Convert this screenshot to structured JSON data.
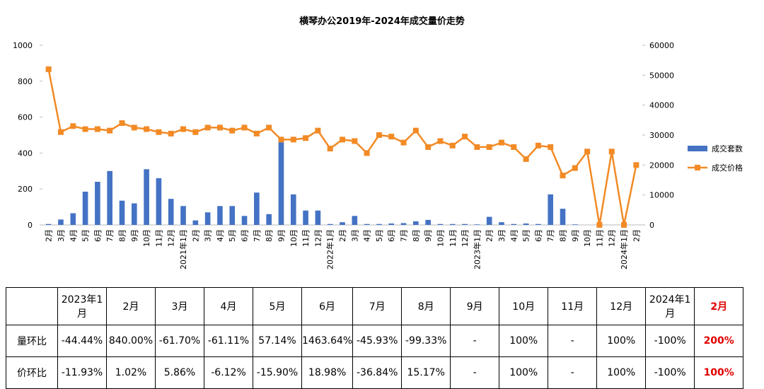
{
  "chart_data": {
    "type": "bar_line",
    "title": "横琴办公2019年-2024年成交量价走势",
    "categories": [
      "2月",
      "3月",
      "4月",
      "5月",
      "6月",
      "7月",
      "8月",
      "9月",
      "10月",
      "11月",
      "12月",
      "2021年1月",
      "2月",
      "3月",
      "4月",
      "5月",
      "6月",
      "7月",
      "8月",
      "9月",
      "10月",
      "11月",
      "12月",
      "2022年1月",
      "2月",
      "3月",
      "4月",
      "5月",
      "6月",
      "7月",
      "8月",
      "9月",
      "10月",
      "11月",
      "12月",
      "2023年1月",
      "2月",
      "3月",
      "4月",
      "5月",
      "6月",
      "7月",
      "8月",
      "9月",
      "10月",
      "11月",
      "12月",
      "2024年1月",
      "2月"
    ],
    "series": [
      {
        "name": "成交套数",
        "type": "bar",
        "color": "#4472c4",
        "axis": "y",
        "values": [
          5,
          30,
          65,
          185,
          240,
          300,
          135,
          120,
          310,
          260,
          145,
          105,
          25,
          70,
          105,
          105,
          50,
          180,
          60,
          460,
          170,
          80,
          80,
          5,
          15,
          50,
          5,
          5,
          8,
          10,
          20,
          28,
          5,
          5,
          5,
          3,
          45,
          15,
          5,
          8,
          5,
          170,
          90,
          3,
          0,
          0,
          0,
          10,
          0
        ]
      },
      {
        "name": "成交价格",
        "type": "line",
        "color": "#f28a26",
        "axis": "y2",
        "values": [
          52000,
          31000,
          33000,
          32000,
          32000,
          31500,
          34000,
          32500,
          32000,
          31000,
          30500,
          32000,
          31000,
          32500,
          32500,
          31500,
          32500,
          30500,
          32500,
          28500,
          28500,
          29000,
          31500,
          25500,
          28500,
          28000,
          24000,
          30000,
          29500,
          27500,
          31500,
          26000,
          28000,
          26500,
          29500,
          26000,
          26000,
          27500,
          26000,
          22000,
          26500,
          26000,
          16500,
          19000,
          24500,
          0,
          24500,
          0,
          20000
        ]
      }
    ],
    "ylim": [
      0,
      1000
    ],
    "yticks": [
      0,
      200,
      400,
      600,
      800,
      1000
    ],
    "y2lim": [
      0,
      60000
    ],
    "y2ticks": [
      0,
      10000,
      20000,
      30000,
      40000,
      50000,
      60000
    ],
    "legend": "right"
  },
  "table": {
    "header": [
      "2023年1月",
      "2月",
      "3月",
      "4月",
      "5月",
      "6月",
      "7月",
      "8月",
      "9月",
      "10月",
      "11月",
      "12月",
      "2024年1月",
      "2月"
    ],
    "rows": [
      [
        "量环比",
        "-44.44%",
        "840.00%",
        "-61.70%",
        "-61.11%",
        "57.14%",
        "1463.64%",
        "-45.93%",
        "-99.33%",
        "-",
        "100%",
        "-",
        "100%",
        "-100%",
        "200%"
      ],
      [
        "价环比",
        "-11.93%",
        "1.02%",
        "5.86%",
        "-6.12%",
        "-15.90%",
        "18.98%",
        "-36.84%",
        "15.17%",
        "-",
        "100%",
        "-",
        "100%",
        "-100%",
        "100%"
      ]
    ]
  }
}
